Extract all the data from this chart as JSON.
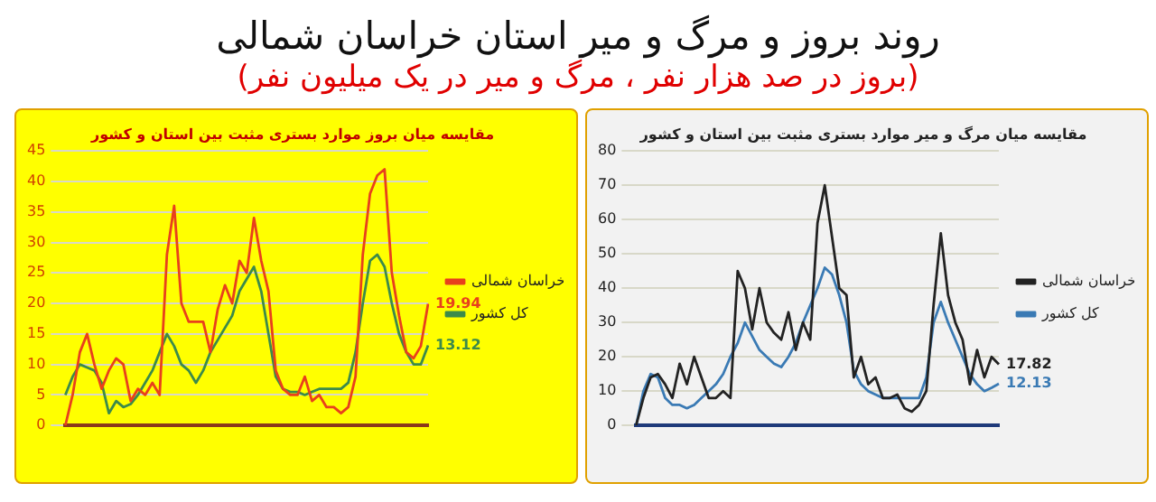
{
  "chart_data": [
    {
      "type": "other",
      "title": "روند بروز و مرگ و میر استان خراسان شمالی",
      "subtitle": "(بروز در صد هزار نفر ، مرگ و میر در یک میلیون نفر)"
    },
    {
      "type": "line",
      "title": "مقایسه میان بروز موارد بستری مثبت بین استان و کشور",
      "categories": [
        null,
        null,
        null,
        null,
        null,
        null,
        null,
        null,
        null,
        null,
        null,
        null,
        null,
        null,
        null,
        null,
        null,
        null,
        null,
        null,
        null,
        null,
        null,
        null,
        null,
        null,
        null,
        null,
        null,
        null,
        null,
        null,
        null,
        null,
        null,
        null,
        null,
        null,
        null,
        null,
        null,
        null,
        null,
        null,
        null,
        null,
        null,
        null,
        null,
        null,
        null
      ],
      "series": [
        {
          "name": "خراسان شمالی",
          "color": "#e8401c",
          "values": [
            0,
            5,
            12,
            15,
            10,
            6,
            9,
            11,
            10,
            4,
            6,
            5,
            7,
            5,
            28,
            36,
            20,
            17,
            17,
            17,
            12,
            19,
            23,
            20,
            27,
            25,
            34,
            27,
            22,
            9,
            6,
            5,
            5,
            8,
            4,
            5,
            3,
            3,
            2,
            3,
            8,
            28,
            38,
            41,
            42,
            25,
            18,
            12,
            11,
            13,
            19.94
          ],
          "value_labels": [
            null,
            null,
            null,
            null,
            null,
            null,
            null,
            null,
            null,
            null,
            null,
            null,
            null,
            null,
            null,
            null,
            null,
            null,
            null,
            null,
            null,
            null,
            null,
            null,
            null,
            null,
            null,
            null,
            null,
            null,
            null,
            null,
            null,
            null,
            null,
            null,
            null,
            null,
            null,
            null,
            null,
            null,
            null,
            null,
            null,
            null,
            null,
            null,
            null,
            null,
            "19.94"
          ]
        },
        {
          "name": "کل کشور",
          "color": "#3c8a4a",
          "values": [
            5,
            8,
            10,
            9.5,
            9,
            7,
            2,
            4,
            3,
            3.5,
            5,
            7,
            9,
            12,
            15,
            13,
            10,
            9,
            7,
            9,
            12,
            14,
            16,
            18,
            22,
            24,
            26,
            22,
            15,
            8,
            6,
            5.5,
            5.5,
            5,
            5.5,
            6,
            6,
            6,
            6,
            7,
            12,
            20,
            27,
            28,
            26,
            20,
            15,
            12,
            10,
            10,
            13.12
          ],
          "value_labels": [
            null,
            null,
            null,
            null,
            null,
            null,
            null,
            null,
            null,
            null,
            null,
            null,
            null,
            null,
            null,
            null,
            null,
            null,
            null,
            null,
            null,
            null,
            null,
            null,
            null,
            null,
            null,
            null,
            null,
            null,
            null,
            null,
            null,
            null,
            null,
            null,
            null,
            null,
            null,
            null,
            null,
            null,
            null,
            null,
            null,
            null,
            null,
            null,
            null,
            null,
            "13.12"
          ]
        }
      ],
      "ylim": [
        0,
        45
      ],
      "yticks": [
        0,
        5,
        10,
        15,
        20,
        25,
        30,
        35,
        40,
        45
      ],
      "grid": "y",
      "legend": "right",
      "marker": "none"
    },
    {
      "type": "line",
      "title": "مقایسه میان مرگ و میر موارد بستری مثبت بین استان و کشور",
      "categories": [
        null,
        null,
        null,
        null,
        null,
        null,
        null,
        null,
        null,
        null,
        null,
        null,
        null,
        null,
        null,
        null,
        null,
        null,
        null,
        null,
        null,
        null,
        null,
        null,
        null,
        null,
        null,
        null,
        null,
        null,
        null,
        null,
        null,
        null,
        null,
        null,
        null,
        null,
        null,
        null,
        null,
        null,
        null,
        null,
        null,
        null,
        null,
        null,
        null,
        null,
        null
      ],
      "series": [
        {
          "name": "خراسان شمالی",
          "color": "#222222",
          "values": [
            0,
            8,
            14,
            15,
            12,
            8,
            18,
            12,
            20,
            14,
            8,
            8,
            10,
            8,
            45,
            40,
            28,
            40,
            30,
            27,
            25,
            33,
            22,
            30,
            25,
            59,
            70,
            55,
            40,
            38,
            14,
            20,
            12,
            14,
            8,
            8,
            9,
            5,
            4,
            6,
            10,
            35,
            56,
            38,
            30,
            25,
            12,
            22,
            14,
            20,
            17.82
          ],
          "value_labels": [
            null,
            null,
            null,
            null,
            null,
            null,
            null,
            null,
            null,
            null,
            null,
            null,
            null,
            null,
            null,
            null,
            null,
            null,
            null,
            null,
            null,
            null,
            null,
            null,
            null,
            null,
            null,
            null,
            null,
            null,
            null,
            null,
            null,
            null,
            null,
            null,
            null,
            null,
            null,
            null,
            null,
            null,
            null,
            null,
            null,
            null,
            null,
            null,
            null,
            null,
            "17.82"
          ]
        },
        {
          "name": "کل کشور",
          "color": "#3a7ab4",
          "values": [
            0,
            10,
            15,
            14,
            8,
            6,
            6,
            5,
            6,
            8,
            10,
            12,
            15,
            20,
            24,
            30,
            26,
            22,
            20,
            18,
            17,
            20,
            24,
            30,
            35,
            40,
            46,
            44,
            38,
            30,
            16,
            12,
            10,
            9,
            8,
            8,
            8,
            8,
            8,
            8,
            14,
            30,
            36,
            30,
            25,
            20,
            15,
            12,
            10,
            11,
            12.13
          ],
          "value_labels": [
            null,
            null,
            null,
            null,
            null,
            null,
            null,
            null,
            null,
            null,
            null,
            null,
            null,
            null,
            null,
            null,
            null,
            null,
            null,
            null,
            null,
            null,
            null,
            null,
            null,
            null,
            null,
            null,
            null,
            null,
            null,
            null,
            null,
            null,
            null,
            null,
            null,
            null,
            null,
            null,
            null,
            null,
            null,
            null,
            null,
            null,
            null,
            null,
            null,
            null,
            "12.13"
          ]
        }
      ],
      "ylim": [
        0,
        80
      ],
      "yticks": [
        0,
        10,
        20,
        30,
        40,
        50,
        60,
        70,
        80
      ],
      "grid": "y",
      "legend": "right",
      "marker": "none"
    }
  ]
}
